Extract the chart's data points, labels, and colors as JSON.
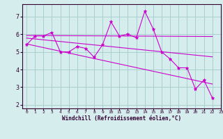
{
  "xlabel": "Windchill (Refroidissement éolien,°C)",
  "bg_color": "#d5eeed",
  "grid_color": "#aacfcf",
  "line_color": "#cc00cc",
  "x_data": [
    0,
    1,
    2,
    3,
    4,
    5,
    6,
    7,
    8,
    9,
    10,
    11,
    12,
    13,
    14,
    15,
    16,
    17,
    18,
    19,
    20,
    21,
    22,
    23
  ],
  "y_main": [
    5.4,
    5.9,
    5.9,
    6.1,
    5.0,
    5.0,
    5.3,
    5.2,
    4.7,
    5.4,
    6.7,
    5.9,
    6.0,
    5.8,
    7.3,
    6.3,
    5.0,
    4.6,
    4.1,
    4.1,
    2.9,
    3.4,
    2.4,
    null
  ],
  "y_trend1_start": 5.93,
  "y_trend1_end": 5.87,
  "y_trend2_start": 5.78,
  "y_trend2_end": 4.72,
  "y_trend3_start": 5.45,
  "y_trend3_end": 3.18,
  "trend_x_start": 0,
  "trend_x_end": 22,
  "ylim": [
    1.8,
    7.7
  ],
  "xlim": [
    -0.5,
    23
  ],
  "yticks": [
    2,
    3,
    4,
    5,
    6,
    7
  ],
  "xticks": [
    0,
    1,
    2,
    3,
    4,
    5,
    6,
    7,
    8,
    9,
    10,
    11,
    12,
    13,
    14,
    15,
    16,
    17,
    18,
    19,
    20,
    21,
    22,
    23
  ]
}
